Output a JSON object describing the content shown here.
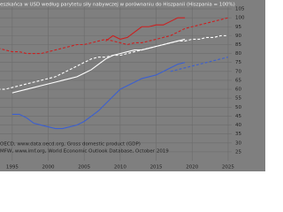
{
  "chart_data": {
    "type": "line",
    "title": "eszkańca w USD według parytetu siły nabywczej w porównaniu do Hiszpanii (Hiszpania = 100%)",
    "sources": [
      "OECD, www.data.oecd.org, Gross domestic product (GDP)",
      "MFW, www.imf.org, World Economic Outlook Database, October 2019"
    ],
    "x": [
      1993,
      1994,
      1995,
      1996,
      1997,
      1998,
      1999,
      2000,
      2001,
      2002,
      2003,
      2004,
      2005,
      2006,
      2007,
      2008,
      2009,
      2010,
      2011,
      2012,
      2013,
      2014,
      2015,
      2016,
      2017,
      2018,
      2019,
      2020,
      2021,
      2022,
      2023,
      2024,
      2025
    ],
    "series": [
      {
        "color": "#cc1f1f",
        "dashed": false,
        "values": [
          null,
          null,
          null,
          null,
          null,
          null,
          null,
          null,
          null,
          null,
          null,
          null,
          null,
          null,
          null,
          87,
          90,
          88,
          89,
          92,
          95,
          95,
          96,
          96,
          98,
          100,
          100,
          null,
          null,
          null,
          null,
          null,
          null
        ]
      },
      {
        "color": "#cc1f1f",
        "dashed": true,
        "values": [
          83,
          82,
          81,
          81,
          80,
          80,
          80,
          81,
          82,
          83,
          84,
          85,
          85,
          86,
          87,
          88,
          87,
          86,
          85,
          86,
          86,
          87,
          88,
          89,
          90,
          92,
          94,
          95,
          96,
          97,
          98,
          99,
          100
        ]
      },
      {
        "color": "#ffffff",
        "dashed": false,
        "values": [
          null,
          null,
          58,
          59,
          60,
          61,
          62,
          63,
          64,
          65,
          66,
          67,
          69,
          71,
          74,
          77,
          79,
          80,
          81,
          82,
          82,
          83,
          84,
          85,
          86,
          87,
          88,
          null,
          null,
          null,
          null,
          null,
          null
        ]
      },
      {
        "color": "#ffffff",
        "dashed": true,
        "values": [
          60,
          60,
          61,
          62,
          63,
          64,
          65,
          66,
          67,
          69,
          71,
          73,
          75,
          77,
          78,
          78,
          79,
          79,
          80,
          81,
          82,
          83,
          84,
          85,
          86,
          87,
          87,
          88,
          88,
          89,
          89,
          90,
          90
        ]
      },
      {
        "color": "#3b5fd0",
        "dashed": false,
        "values": [
          null,
          null,
          46,
          46,
          44,
          41,
          40,
          39,
          38,
          38,
          39,
          40,
          42,
          45,
          48,
          52,
          56,
          60,
          62,
          64,
          66,
          67,
          68,
          70,
          72,
          74,
          75,
          null,
          null,
          null,
          null,
          null,
          null
        ]
      },
      {
        "color": "#3b5fd0",
        "dashed": true,
        "values": [
          null,
          null,
          null,
          null,
          null,
          null,
          null,
          null,
          null,
          null,
          null,
          null,
          null,
          null,
          null,
          null,
          null,
          null,
          null,
          null,
          null,
          null,
          null,
          null,
          70,
          71,
          72,
          73,
          74,
          75,
          76,
          77,
          78
        ]
      }
    ],
    "xlim": [
      1993.3,
      2025.5
    ],
    "xticks": [
      1995,
      2000,
      2005,
      2010,
      2015,
      2020,
      2025
    ],
    "ylim": [
      20,
      106
    ],
    "yticks": [
      25,
      30,
      35,
      40,
      45,
      50,
      55,
      60,
      65,
      70,
      75,
      80,
      85,
      90,
      95,
      100,
      105
    ],
    "grid": true
  }
}
